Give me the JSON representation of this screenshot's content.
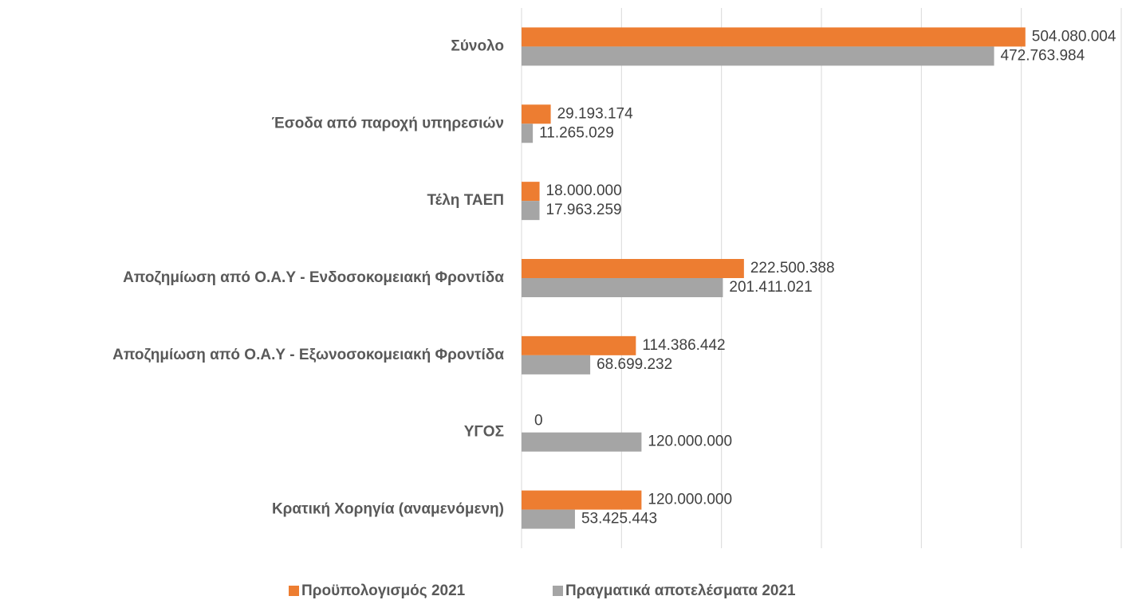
{
  "chart_data": {
    "type": "hbar",
    "categories": [
      "Σύνολο",
      "Έσοδα από παροχή υπηρεσιών",
      "Τέλη ΤΑΕΠ",
      "Αποζημίωση από Ο.Α.Υ - Ενδοσοκομειακή Φροντίδα",
      "Αποζημίωση από Ο.Α.Υ - Εξωνοσοκομειακή Φροντίδα",
      "ΥΓΟΣ",
      "Κρατική Χορηγία (αναμενόμενη)"
    ],
    "series": [
      {
        "name": "Προϋπολογισμός 2021",
        "color": "#ED7D31",
        "values": [
          504080004,
          29193174,
          18000000,
          222500388,
          114386442,
          0,
          120000000
        ],
        "value_labels": [
          "504.080.004",
          "29.193.174",
          "18.000.000",
          "222.500.388",
          "114.386.442",
          "0",
          "120.000.000"
        ]
      },
      {
        "name": "Πραγματικά αποτελέσματα 2021",
        "color": "#A5A5A5",
        "values": [
          472763984,
          11265029,
          17963259,
          201411021,
          68699232,
          120000000,
          53425443
        ],
        "value_labels": [
          "472.763.984",
          "11.265.029",
          "17.963.259",
          "201.411.021",
          "68.699.232",
          "120.000.000",
          "53.425.443"
        ]
      }
    ],
    "xlim": [
      0,
      600000000
    ],
    "xticks": [
      0,
      100000000,
      200000000,
      300000000,
      400000000,
      500000000,
      600000000
    ],
    "grid": true,
    "legend": "bottom"
  }
}
